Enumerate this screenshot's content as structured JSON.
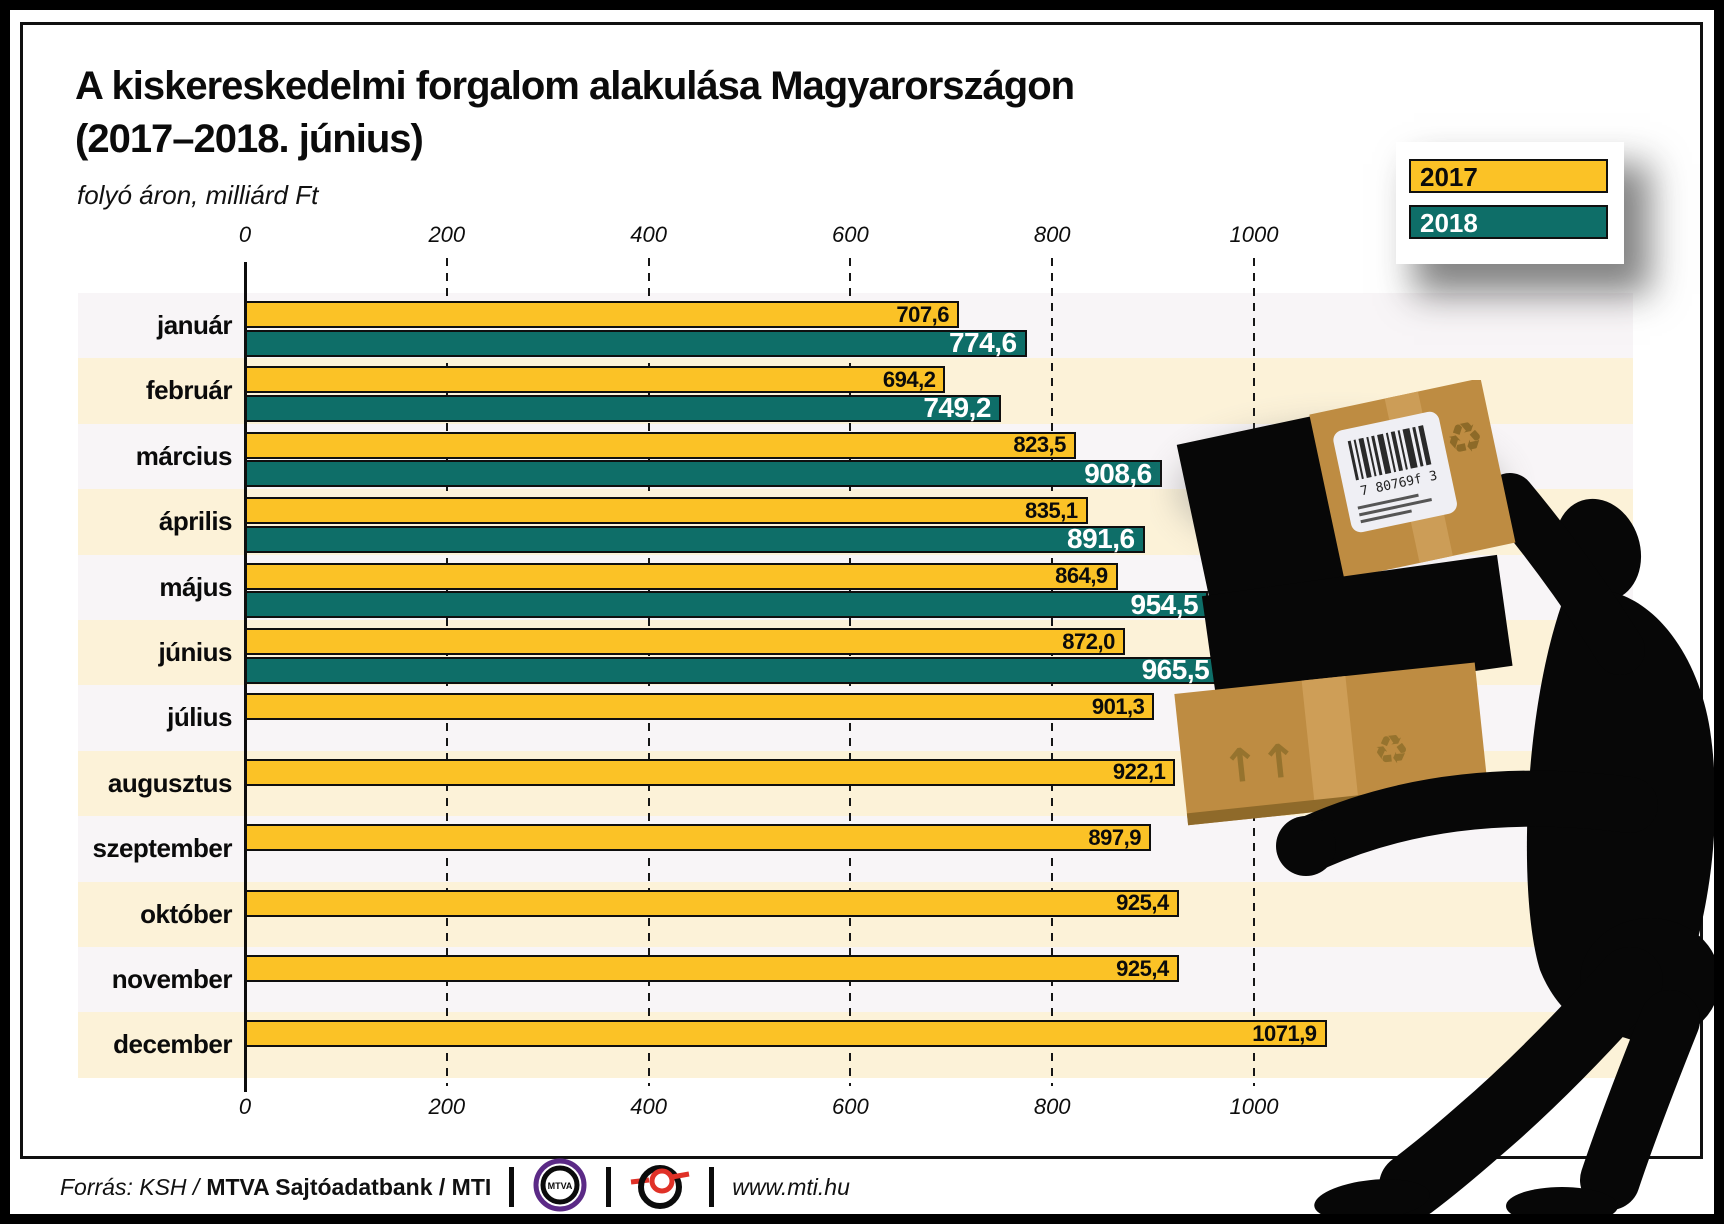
{
  "title_line1": "A kiskereskedelmi forgalom alakulása Magyarországon",
  "title_line2": "(2017–2018. június)",
  "subtitle": "folyó áron, milliárd Ft",
  "legend": {
    "items": [
      {
        "label": "2017",
        "color": "#fbc226",
        "text_color": "#0b0b0b"
      },
      {
        "label": "2018",
        "color": "#0e6e68",
        "text_color": "#ffffff"
      }
    ]
  },
  "chart_data": {
    "type": "bar",
    "orientation": "horizontal",
    "title": "A kiskereskedelmi forgalom alakulása Magyarországon (2017–2018. június)",
    "unit_label": "folyó áron, milliárd Ft",
    "categories": [
      "január",
      "február",
      "március",
      "április",
      "május",
      "június",
      "július",
      "augusztus",
      "szeptember",
      "október",
      "november",
      "december"
    ],
    "series": [
      {
        "name": "2017",
        "color": "#fbc226",
        "values": [
          707.6,
          694.2,
          823.5,
          835.1,
          864.9,
          872.0,
          901.3,
          922.1,
          897.9,
          925.4,
          925.4,
          1071.9
        ]
      },
      {
        "name": "2018",
        "color": "#0e6e68",
        "values": [
          774.6,
          749.2,
          908.6,
          891.6,
          954.5,
          965.5,
          null,
          null,
          null,
          null,
          null,
          null
        ]
      }
    ],
    "x_ticks": [
      0,
      200,
      400,
      600,
      800,
      1000
    ],
    "xlim": [
      0,
      1100
    ],
    "grid": "vertical-dashed",
    "legend_position": "top-right",
    "value_label_format": "comma-decimal, inside bar end",
    "row_stripe_colors": [
      "#f8f5f7",
      "#fcf2d8"
    ]
  },
  "footer": {
    "source_italic": "Forrás: KSH /",
    "source_bold": "MTVA Sajtóadatbank / MTI",
    "mtva_logo_text": "MTVA",
    "website": "www.mti.hu"
  },
  "illustration": {
    "barcode_text": "7 80769f 3"
  }
}
